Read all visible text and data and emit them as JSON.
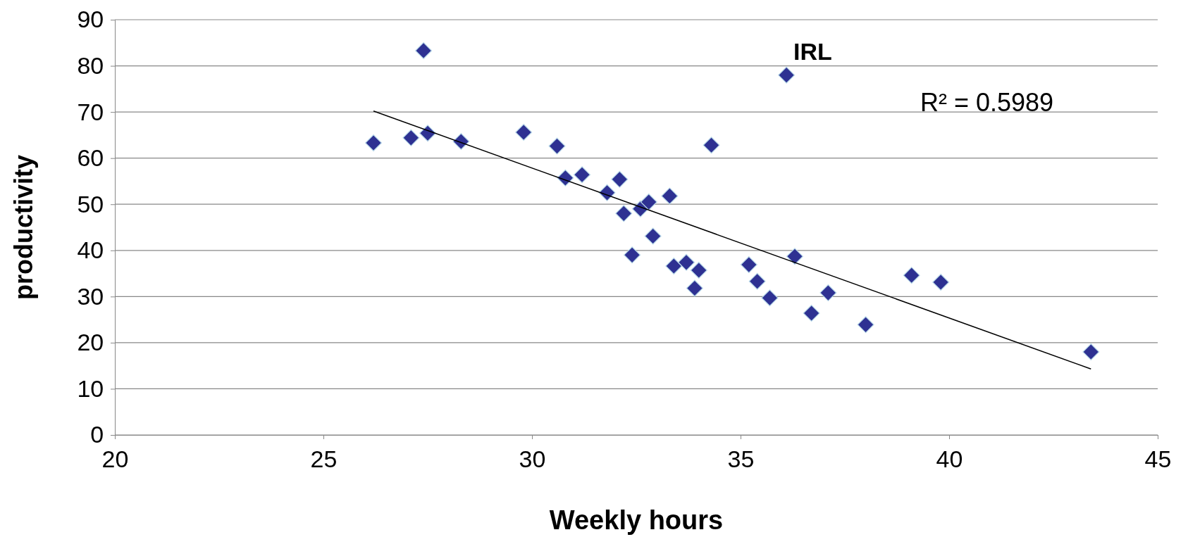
{
  "chart_data": {
    "type": "scatter",
    "xlabel": "Weekly hours",
    "ylabel": "productivity",
    "xlim": [
      20,
      45
    ],
    "xticks": [
      20,
      25,
      30,
      35,
      40,
      45
    ],
    "ylim": [
      0,
      90
    ],
    "yticks": [
      0,
      10,
      20,
      30,
      40,
      50,
      60,
      70,
      80,
      90
    ],
    "grid": "y",
    "series": [
      {
        "marker": "diamond",
        "color": "#2e3192",
        "x": [
          27.4,
          26.2,
          27.1,
          27.5,
          28.3,
          29.8,
          30.6,
          30.8,
          31.2,
          31.8,
          32.1,
          32.2,
          32.4,
          32.6,
          32.8,
          32.9,
          33.3,
          33.4,
          33.7,
          33.9,
          34.0,
          34.3,
          35.2,
          35.4,
          35.7,
          36.1,
          36.3,
          36.7,
          37.1,
          38.0,
          39.1,
          39.8,
          43.4
        ],
        "values": [
          83.3,
          63.3,
          64.4,
          65.4,
          63.6,
          65.6,
          62.6,
          55.7,
          56.4,
          52.5,
          55.4,
          48.0,
          39.0,
          49.0,
          50.5,
          43.1,
          51.8,
          36.6,
          37.4,
          31.8,
          35.7,
          62.8,
          36.9,
          33.3,
          29.7,
          78.0,
          38.7,
          26.4,
          30.8,
          23.9,
          34.6,
          33.1,
          18.0
        ]
      },
      {
        "type": "line",
        "color": "#000000",
        "x": [
          26.2,
          43.4
        ],
        "values": [
          70.2,
          14.3
        ]
      }
    ],
    "annotations": [
      {
        "text": "IRL",
        "x": 36.1,
        "y": 78.0
      },
      "R² = 0.5989"
    ]
  }
}
